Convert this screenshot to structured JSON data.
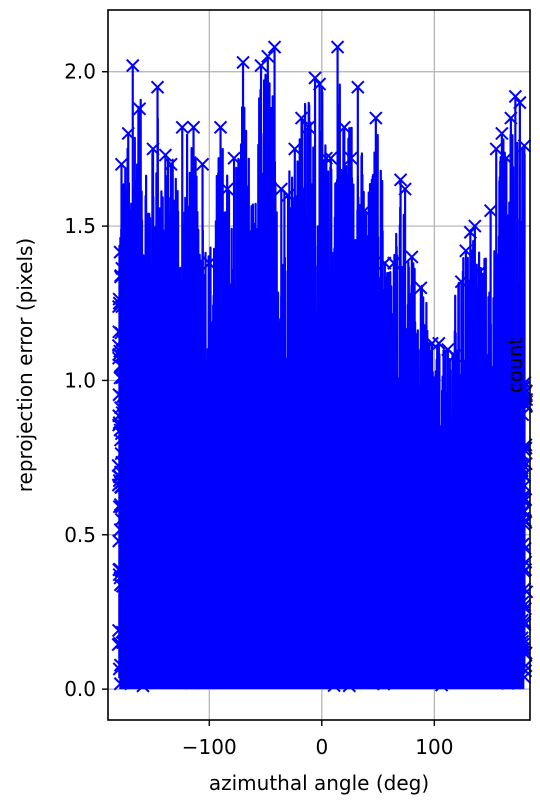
{
  "chart_data": {
    "type": "scatter",
    "title": "",
    "xlabel": "azimuthal angle (deg)",
    "ylabel": "reprojection error (pixels)",
    "right_label": "count",
    "xlim": [
      -190,
      185
    ],
    "ylim": [
      -0.1,
      2.2
    ],
    "xticks": [
      -100,
      0,
      100
    ],
    "xtick_labels": [
      "−100",
      "0",
      "100"
    ],
    "yticks": [
      0.0,
      0.5,
      1.0,
      1.5,
      2.0
    ],
    "ytick_labels": [
      "0.0",
      "0.5",
      "1.0",
      "1.5",
      "2.0"
    ],
    "grid": true,
    "series": [
      {
        "color": "#0000ff",
        "marker": "x",
        "style": "stem-like dense line with x markers",
        "envelope_x": [
          -180,
          -170,
          -165,
          -160,
          -150,
          -145,
          -140,
          -130,
          -125,
          -120,
          -110,
          -100,
          -90,
          -80,
          -70,
          -60,
          -55,
          -50,
          -45,
          -40,
          -30,
          -20,
          -10,
          -5,
          0,
          5,
          10,
          15,
          20,
          30,
          40,
          50,
          60,
          70,
          80,
          90,
          100,
          110,
          120,
          130,
          140,
          150,
          155,
          160,
          165,
          170,
          175,
          180
        ],
        "envelope_y": [
          1.7,
          1.8,
          2.02,
          1.88,
          1.75,
          1.95,
          1.7,
          1.82,
          1.6,
          1.82,
          1.7,
          1.45,
          1.82,
          1.6,
          2.03,
          1.5,
          2.02,
          2.05,
          2.08,
          1.6,
          1.75,
          1.85,
          1.98,
          1.6,
          1.97,
          1.7,
          1.75,
          2.08,
          1.82,
          1.95,
          1.6,
          1.85,
          1.38,
          1.65,
          1.4,
          1.3,
          1.12,
          1.1,
          1.32,
          1.48,
          1.5,
          1.35,
          1.55,
          1.82,
          1.75,
          1.92,
          1.9,
          1.75
        ],
        "high_points": [
          [
            -178,
            1.7
          ],
          [
            -172,
            1.8
          ],
          [
            -168,
            2.02
          ],
          [
            -162,
            1.88
          ],
          [
            -150,
            1.75
          ],
          [
            -146,
            1.95
          ],
          [
            -139,
            1.73
          ],
          [
            -134,
            1.7
          ],
          [
            -124,
            1.82
          ],
          [
            -114,
            1.82
          ],
          [
            -106,
            1.7
          ],
          [
            -100,
            1.38
          ],
          [
            -90,
            1.82
          ],
          [
            -84,
            1.62
          ],
          [
            -78,
            1.72
          ],
          [
            -70,
            2.03
          ],
          [
            -64,
            1.48
          ],
          [
            -54,
            2.02
          ],
          [
            -48,
            2.05
          ],
          [
            -42,
            2.08
          ],
          [
            -36,
            1.62
          ],
          [
            -30,
            1.6
          ],
          [
            -24,
            1.75
          ],
          [
            -18,
            1.85
          ],
          [
            -12,
            1.82
          ],
          [
            -6,
            1.98
          ],
          [
            -2,
            1.96
          ],
          [
            4,
            1.72
          ],
          [
            8,
            1.72
          ],
          [
            14,
            2.08
          ],
          [
            20,
            1.82
          ],
          [
            26,
            1.72
          ],
          [
            32,
            1.95
          ],
          [
            38,
            1.55
          ],
          [
            48,
            1.85
          ],
          [
            56,
            1.38
          ],
          [
            64,
            1.38
          ],
          [
            70,
            1.65
          ],
          [
            74,
            1.62
          ],
          [
            80,
            1.4
          ],
          [
            88,
            1.3
          ],
          [
            98,
            1.12
          ],
          [
            104,
            1.12
          ],
          [
            112,
            1.1
          ],
          [
            118,
            1.08
          ],
          [
            124,
            1.32
          ],
          [
            128,
            1.42
          ],
          [
            132,
            1.48
          ],
          [
            136,
            1.5
          ],
          [
            140,
            1.35
          ],
          [
            150,
            1.55
          ],
          [
            155,
            1.75
          ],
          [
            160,
            1.8
          ],
          [
            164,
            1.72
          ],
          [
            168,
            1.85
          ],
          [
            172,
            1.92
          ],
          [
            176,
            1.9
          ],
          [
            180,
            1.76
          ]
        ]
      }
    ]
  }
}
